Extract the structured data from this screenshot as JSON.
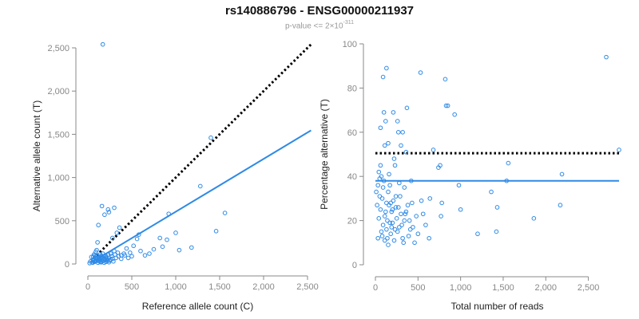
{
  "title": "rs140886796 - ENSG00000211937",
  "subtitle": {
    "prefix": "p-value <= 2×10",
    "exponent": "-311"
  },
  "colors": {
    "points": "#2E8AE6",
    "fit": "#2E8AE6",
    "reference": "#000000",
    "axis": "#888888"
  },
  "chart_data": [
    {
      "type": "scatter",
      "xlabel": "Reference allele count (C)",
      "ylabel": "Alternative allele count (T)",
      "xlim": [
        0,
        2500
      ],
      "ylim": [
        0,
        2500
      ],
      "xticks": [
        0,
        500,
        1000,
        1500,
        2000,
        2500
      ],
      "xtick_labels": [
        "0",
        "500",
        "1,000",
        "1,500",
        "2,000",
        "2,500"
      ],
      "yticks": [
        0,
        500,
        1000,
        1500,
        2000,
        2500
      ],
      "ytick_labels": [
        "0",
        "500",
        "1,000",
        "1,500",
        "2,000",
        "2,500"
      ],
      "reference_line": {
        "style": "dotted",
        "points": [
          [
            100,
            100
          ],
          [
            2540,
            2540
          ]
        ]
      },
      "fit_line": {
        "style": "solid",
        "points": [
          [
            60,
            30
          ],
          [
            2540,
            1545
          ]
        ]
      },
      "points": [
        [
          170,
          2540
        ],
        [
          1400,
          1460
        ],
        [
          1280,
          900
        ],
        [
          1560,
          590
        ],
        [
          1460,
          380
        ],
        [
          1000,
          360
        ],
        [
          1180,
          190
        ],
        [
          1040,
          160
        ],
        [
          900,
          280
        ],
        [
          820,
          300
        ],
        [
          920,
          580
        ],
        [
          580,
          340
        ],
        [
          560,
          290
        ],
        [
          520,
          210
        ],
        [
          440,
          180
        ],
        [
          410,
          120
        ],
        [
          380,
          100
        ],
        [
          360,
          420
        ],
        [
          330,
          360
        ],
        [
          300,
          650
        ],
        [
          280,
          300
        ],
        [
          240,
          600
        ],
        [
          230,
          630
        ],
        [
          190,
          570
        ],
        [
          160,
          670
        ],
        [
          120,
          450
        ],
        [
          110,
          250
        ],
        [
          100,
          160
        ],
        [
          90,
          140
        ],
        [
          80,
          100
        ],
        [
          70,
          60
        ],
        [
          60,
          40
        ],
        [
          50,
          20
        ],
        [
          40,
          80
        ],
        [
          30,
          30
        ],
        [
          20,
          10
        ],
        [
          130,
          60
        ],
        [
          140,
          110
        ],
        [
          150,
          80
        ],
        [
          160,
          40
        ],
        [
          170,
          120
        ],
        [
          180,
          90
        ],
        [
          190,
          60
        ],
        [
          200,
          100
        ],
        [
          210,
          80
        ],
        [
          220,
          50
        ],
        [
          230,
          110
        ],
        [
          240,
          70
        ],
        [
          250,
          40
        ],
        [
          260,
          120
        ],
        [
          270,
          90
        ],
        [
          280,
          60
        ],
        [
          290,
          30
        ],
        [
          300,
          150
        ],
        [
          310,
          110
        ],
        [
          320,
          70
        ],
        [
          340,
          130
        ],
        [
          350,
          90
        ],
        [
          380,
          60
        ],
        [
          420,
          100
        ],
        [
          460,
          70
        ],
        [
          480,
          130
        ],
        [
          500,
          90
        ],
        [
          600,
          150
        ],
        [
          650,
          100
        ],
        [
          700,
          120
        ],
        [
          750,
          170
        ],
        [
          850,
          200
        ],
        [
          100,
          40
        ],
        [
          110,
          70
        ],
        [
          120,
          90
        ],
        [
          130,
          30
        ],
        [
          140,
          50
        ],
        [
          150,
          20
        ],
        [
          60,
          80
        ],
        [
          70,
          110
        ],
        [
          80,
          30
        ],
        [
          90,
          60
        ],
        [
          100,
          100
        ],
        [
          55,
          15
        ],
        [
          65,
          45
        ],
        [
          75,
          25
        ],
        [
          85,
          70
        ],
        [
          95,
          35
        ],
        [
          105,
          55
        ],
        [
          115,
          15
        ],
        [
          125,
          75
        ],
        [
          135,
          45
        ],
        [
          145,
          25
        ],
        [
          155,
          95
        ],
        [
          165,
          65
        ],
        [
          175,
          35
        ],
        [
          185,
          15
        ],
        [
          195,
          45
        ],
        [
          205,
          25
        ],
        [
          215,
          65
        ],
        [
          225,
          35
        ],
        [
          240,
          20
        ],
        [
          260,
          50
        ]
      ]
    },
    {
      "type": "scatter",
      "xlabel": "Total number of reads",
      "ylabel": "Percentage alternative (T)",
      "xlim": [
        0,
        2860
      ],
      "ylim": [
        0,
        100
      ],
      "xticks": [
        0,
        500,
        1000,
        1500,
        2000,
        2500
      ],
      "xtick_labels": [
        "0",
        "500",
        "1,000",
        "1,500",
        "2,000",
        "2,500"
      ],
      "yticks": [
        0,
        20,
        40,
        60,
        80,
        100
      ],
      "ytick_labels": [
        "0",
        "20",
        "40",
        "60",
        "80",
        "100"
      ],
      "reference_line": {
        "style": "dotted",
        "points": [
          [
            0,
            50.5
          ],
          [
            2860,
            50.5
          ]
        ]
      },
      "fit_line": {
        "style": "solid",
        "points": [
          [
            0,
            38
          ],
          [
            2860,
            38
          ]
        ]
      },
      "points": [
        [
          2710,
          94
        ],
        [
          2860,
          52
        ],
        [
          2190,
          41
        ],
        [
          2170,
          27
        ],
        [
          1860,
          21
        ],
        [
          1560,
          46
        ],
        [
          1540,
          38
        ],
        [
          1430,
          26
        ],
        [
          1420,
          15
        ],
        [
          1360,
          33
        ],
        [
          1200,
          14
        ],
        [
          1000,
          25
        ],
        [
          980,
          36
        ],
        [
          930,
          68
        ],
        [
          850,
          72
        ],
        [
          830,
          72
        ],
        [
          820,
          84
        ],
        [
          760,
          45
        ],
        [
          740,
          44
        ],
        [
          780,
          28
        ],
        [
          770,
          22
        ],
        [
          680,
          52
        ],
        [
          640,
          30
        ],
        [
          630,
          12
        ],
        [
          590,
          18
        ],
        [
          560,
          23
        ],
        [
          540,
          29
        ],
        [
          530,
          87
        ],
        [
          460,
          10
        ],
        [
          420,
          38
        ],
        [
          400,
          20
        ],
        [
          370,
          71
        ],
        [
          360,
          51
        ],
        [
          340,
          35
        ],
        [
          330,
          10
        ],
        [
          320,
          60
        ],
        [
          300,
          54
        ],
        [
          280,
          37
        ],
        [
          270,
          60
        ],
        [
          260,
          65
        ],
        [
          240,
          31
        ],
        [
          230,
          45
        ],
        [
          220,
          48
        ],
        [
          210,
          69
        ],
        [
          200,
          25
        ],
        [
          190,
          17
        ],
        [
          180,
          28
        ],
        [
          170,
          36
        ],
        [
          160,
          41
        ],
        [
          150,
          55
        ],
        [
          140,
          20
        ],
        [
          130,
          89
        ],
        [
          120,
          65
        ],
        [
          110,
          54
        ],
        [
          100,
          69
        ],
        [
          90,
          85
        ],
        [
          80,
          13
        ],
        [
          70,
          15
        ],
        [
          60,
          62
        ],
        [
          50,
          31
        ],
        [
          40,
          21
        ],
        [
          30,
          12
        ],
        [
          20,
          27
        ],
        [
          10,
          33
        ],
        [
          60,
          25
        ],
        [
          80,
          30
        ],
        [
          90,
          35
        ],
        [
          110,
          22
        ],
        [
          130,
          28
        ],
        [
          150,
          33
        ],
        [
          170,
          19
        ],
        [
          190,
          24
        ],
        [
          210,
          29
        ],
        [
          230,
          16
        ],
        [
          250,
          21
        ],
        [
          270,
          26
        ],
        [
          290,
          31
        ],
        [
          310,
          18
        ],
        [
          350,
          23
        ],
        [
          380,
          27
        ],
        [
          440,
          17
        ],
        [
          480,
          22
        ],
        [
          500,
          14
        ],
        [
          70,
          40
        ],
        [
          90,
          18
        ],
        [
          110,
          11
        ],
        [
          130,
          16
        ],
        [
          150,
          9
        ],
        [
          50,
          39
        ],
        [
          30,
          36
        ],
        [
          40,
          42
        ],
        [
          60,
          45
        ],
        [
          100,
          38
        ],
        [
          120,
          24
        ],
        [
          140,
          12
        ],
        [
          160,
          27
        ],
        [
          180,
          14
        ],
        [
          200,
          19
        ],
        [
          220,
          11
        ],
        [
          240,
          26
        ],
        [
          260,
          15
        ],
        [
          280,
          17
        ],
        [
          300,
          23
        ],
        [
          320,
          12
        ],
        [
          340,
          20
        ],
        [
          360,
          24
        ],
        [
          390,
          13
        ],
        [
          410,
          16
        ],
        [
          430,
          28
        ]
      ]
    }
  ]
}
